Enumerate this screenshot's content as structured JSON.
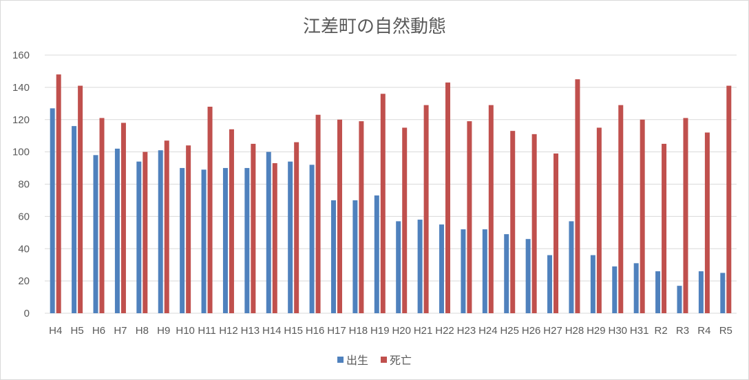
{
  "chart_data": {
    "type": "bar",
    "title": "江差町の自然動態",
    "categories": [
      "H4",
      "H5",
      "H6",
      "H7",
      "H8",
      "H9",
      "H10",
      "H11",
      "H12",
      "H13",
      "H14",
      "H15",
      "H16",
      "H17",
      "H18",
      "H19",
      "H20",
      "H21",
      "H22",
      "H23",
      "H24",
      "H25",
      "H26",
      "H27",
      "H28",
      "H29",
      "H30",
      "H31",
      "R2",
      "R3",
      "R4",
      "R5"
    ],
    "series": [
      {
        "name": "出生",
        "color": "#4f81bd",
        "values": [
          127,
          116,
          98,
          102,
          94,
          101,
          90,
          89,
          90,
          90,
          100,
          94,
          92,
          70,
          70,
          73,
          57,
          58,
          55,
          52,
          52,
          49,
          46,
          36,
          57,
          36,
          29,
          31,
          26,
          17,
          26,
          25
        ]
      },
      {
        "name": "死亡",
        "color": "#c0504d",
        "values": [
          148,
          141,
          121,
          118,
          100,
          107,
          104,
          128,
          114,
          105,
          93,
          106,
          123,
          120,
          119,
          136,
          115,
          129,
          143,
          119,
          129,
          113,
          111,
          99,
          145,
          115,
          129,
          120,
          105,
          121,
          112,
          141
        ]
      }
    ],
    "ylim": [
      0,
      160
    ],
    "yticks": [
      0,
      20,
      40,
      60,
      80,
      100,
      120,
      140,
      160
    ],
    "grid": true,
    "legend_position": "bottom"
  }
}
